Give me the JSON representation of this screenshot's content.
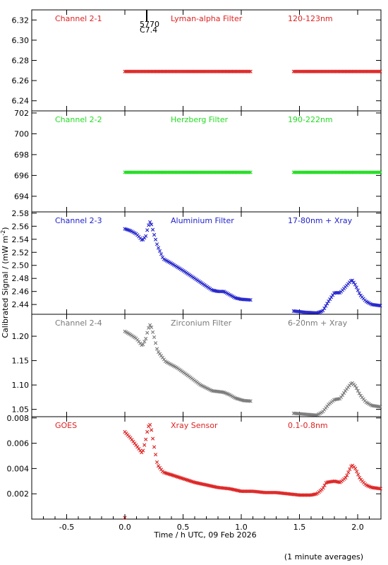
{
  "figure": {
    "ylabel": "Calibrated Signal / (mW m",
    "ylabel_sup": "-2",
    "ylabel_tail": ")",
    "xlabel": "Time / h UTC, 09 Feb 2026",
    "footnote": "(1 minute averages)",
    "event_label_1": "5770",
    "event_label_2": "C7.4"
  },
  "chart_data": [
    {
      "type": "scatter",
      "name": "Channel 2-1",
      "filter": "Lyman-alpha Filter",
      "band": "120-123nm",
      "color": "#dd2222",
      "ylim": [
        6.23,
        6.33
      ],
      "yticks": [
        "6.24",
        "6.26",
        "6.28",
        "6.30",
        "6.32"
      ],
      "ytick_values": [
        6.24,
        6.26,
        6.28,
        6.3,
        6.32
      ],
      "xlim": [
        -0.8,
        2.2
      ],
      "segments": [
        {
          "x": [
            0.0,
            1.08
          ],
          "y": [
            6.269,
            6.269
          ]
        },
        {
          "x": [
            1.45,
            2.2
          ],
          "y": [
            6.269,
            6.269
          ]
        }
      ]
    },
    {
      "type": "scatter",
      "name": "Channel 2-2",
      "filter": "Herzberg Filter",
      "band": "190-222nm",
      "color": "#22dd22",
      "ylim": [
        692.5,
        702.2
      ],
      "yticks": [
        "694",
        "696",
        "698",
        "700",
        "702"
      ],
      "ytick_values": [
        694,
        696,
        698,
        700,
        702
      ],
      "xlim": [
        -0.8,
        2.2
      ],
      "segments": [
        {
          "x": [
            0.0,
            1.08
          ],
          "y": [
            696.3,
            696.3
          ]
        },
        {
          "x": [
            1.45,
            2.2
          ],
          "y": [
            696.3,
            696.3
          ]
        }
      ]
    },
    {
      "type": "scatter",
      "name": "Channel 2-3",
      "filter": "Aluminium Filter",
      "band": "17-80nm + Xray",
      "color": "#2222cc",
      "ylim": [
        2.425,
        2.582
      ],
      "yticks": [
        "2.44",
        "2.46",
        "2.48",
        "2.50",
        "2.52",
        "2.54",
        "2.56",
        "2.58"
      ],
      "ytick_values": [
        2.44,
        2.46,
        2.48,
        2.5,
        2.52,
        2.54,
        2.56,
        2.58
      ],
      "xlim": [
        -0.8,
        2.2
      ],
      "points": [
        [
          0.0,
          2.556
        ],
        [
          0.05,
          2.553
        ],
        [
          0.1,
          2.548
        ],
        [
          0.15,
          2.538
        ],
        [
          0.18,
          2.545
        ],
        [
          0.2,
          2.56
        ],
        [
          0.22,
          2.568
        ],
        [
          0.25,
          2.548
        ],
        [
          0.28,
          2.53
        ],
        [
          0.33,
          2.51
        ],
        [
          0.4,
          2.503
        ],
        [
          0.5,
          2.492
        ],
        [
          0.6,
          2.48
        ],
        [
          0.7,
          2.468
        ],
        [
          0.75,
          2.462
        ],
        [
          0.8,
          2.46
        ],
        [
          0.85,
          2.46
        ],
        [
          0.9,
          2.455
        ],
        [
          0.95,
          2.45
        ],
        [
          1.0,
          2.448
        ],
        [
          1.08,
          2.447
        ],
        [
          1.45,
          2.43
        ],
        [
          1.55,
          2.428
        ],
        [
          1.65,
          2.427
        ],
        [
          1.7,
          2.43
        ],
        [
          1.75,
          2.445
        ],
        [
          1.8,
          2.458
        ],
        [
          1.85,
          2.458
        ],
        [
          1.9,
          2.468
        ],
        [
          1.95,
          2.478
        ],
        [
          1.98,
          2.47
        ],
        [
          2.02,
          2.455
        ],
        [
          2.07,
          2.445
        ],
        [
          2.12,
          2.44
        ],
        [
          2.2,
          2.438
        ]
      ]
    },
    {
      "type": "scatter",
      "name": "Channel 2-4",
      "filter": "Zirconium Filter",
      "band": "6-20nm + Xray",
      "color": "#7a7a7a",
      "ylim": [
        1.035,
        1.245
      ],
      "yticks": [
        "1.05",
        "1.10",
        "1.15",
        "1.20"
      ],
      "ytick_values": [
        1.05,
        1.1,
        1.15,
        1.2
      ],
      "xlim": [
        -0.8,
        2.2
      ],
      "points": [
        [
          0.0,
          1.21
        ],
        [
          0.05,
          1.203
        ],
        [
          0.1,
          1.195
        ],
        [
          0.15,
          1.18
        ],
        [
          0.18,
          1.195
        ],
        [
          0.2,
          1.215
        ],
        [
          0.22,
          1.225
        ],
        [
          0.25,
          1.2
        ],
        [
          0.28,
          1.17
        ],
        [
          0.35,
          1.148
        ],
        [
          0.45,
          1.135
        ],
        [
          0.55,
          1.118
        ],
        [
          0.65,
          1.1
        ],
        [
          0.75,
          1.088
        ],
        [
          0.85,
          1.085
        ],
        [
          0.9,
          1.08
        ],
        [
          0.95,
          1.073
        ],
        [
          1.02,
          1.068
        ],
        [
          1.08,
          1.067
        ],
        [
          1.45,
          1.042
        ],
        [
          1.55,
          1.04
        ],
        [
          1.65,
          1.038
        ],
        [
          1.7,
          1.045
        ],
        [
          1.75,
          1.06
        ],
        [
          1.8,
          1.07
        ],
        [
          1.85,
          1.072
        ],
        [
          1.9,
          1.09
        ],
        [
          1.95,
          1.105
        ],
        [
          1.98,
          1.098
        ],
        [
          2.02,
          1.08
        ],
        [
          2.07,
          1.065
        ],
        [
          2.12,
          1.058
        ],
        [
          2.2,
          1.055
        ]
      ]
    },
    {
      "type": "scatter",
      "name": "GOES",
      "filter": "Xray Sensor",
      "band": "0.1-0.8nm",
      "color": "#dd2222",
      "ylim": [
        0.0,
        0.0081
      ],
      "yticks": [
        "0.002",
        "0.004",
        "0.006",
        "0.008"
      ],
      "ytick_values": [
        0.002,
        0.004,
        0.006,
        0.008
      ],
      "xlim": [
        -0.8,
        2.2
      ],
      "points": [
        [
          0.0,
          0.0069
        ],
        [
          0.05,
          0.0064
        ],
        [
          0.1,
          0.0058
        ],
        [
          0.15,
          0.0052
        ],
        [
          0.18,
          0.0063
        ],
        [
          0.2,
          0.0073
        ],
        [
          0.22,
          0.0075
        ],
        [
          0.25,
          0.0058
        ],
        [
          0.28,
          0.0043
        ],
        [
          0.33,
          0.0037
        ],
        [
          0.4,
          0.0035
        ],
        [
          0.5,
          0.0032
        ],
        [
          0.6,
          0.0029
        ],
        [
          0.7,
          0.0027
        ],
        [
          0.8,
          0.0025
        ],
        [
          0.9,
          0.0024
        ],
        [
          1.0,
          0.0022
        ],
        [
          1.1,
          0.0022
        ],
        [
          1.2,
          0.0021
        ],
        [
          1.3,
          0.0021
        ],
        [
          1.4,
          0.002
        ],
        [
          1.5,
          0.0019
        ],
        [
          1.6,
          0.0019
        ],
        [
          1.65,
          0.002
        ],
        [
          1.7,
          0.0024
        ],
        [
          1.73,
          0.0029
        ],
        [
          1.8,
          0.003
        ],
        [
          1.85,
          0.0029
        ],
        [
          1.9,
          0.0033
        ],
        [
          1.95,
          0.0043
        ],
        [
          1.98,
          0.004
        ],
        [
          2.02,
          0.0032
        ],
        [
          2.07,
          0.0027
        ],
        [
          2.12,
          0.0025
        ],
        [
          2.2,
          0.0024
        ]
      ],
      "extra_points": [
        [
          0.0,
          0.0
        ]
      ]
    }
  ],
  "x_axis": {
    "ticks": [
      "-0.5",
      "0.0",
      "0.5",
      "1.0",
      "1.5",
      "2.0"
    ],
    "tick_values": [
      -0.5,
      0.0,
      0.5,
      1.0,
      1.5,
      2.0
    ],
    "xlim": [
      -0.8,
      2.2
    ]
  }
}
